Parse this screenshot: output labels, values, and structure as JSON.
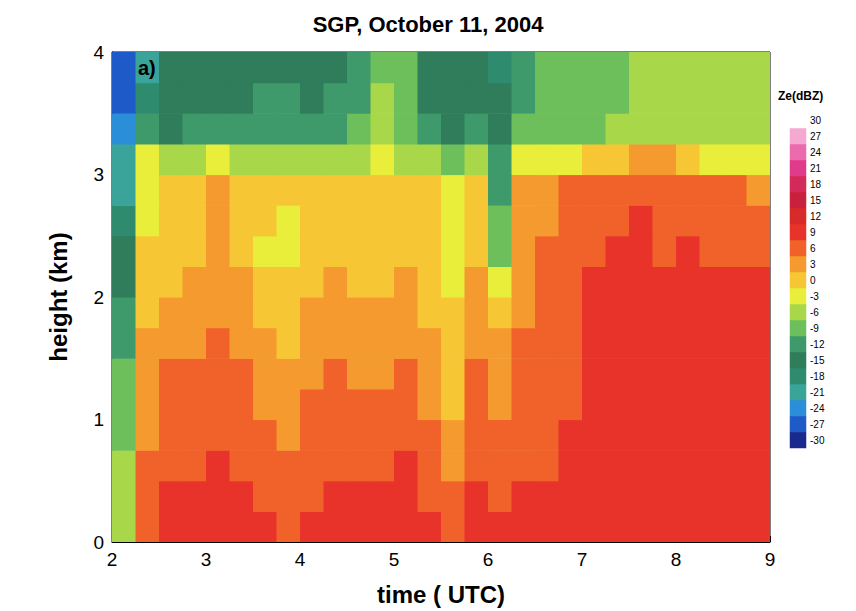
{
  "chart_data": {
    "type": "heatmap",
    "title": "SGP, October 11, 2004",
    "x_label": "time ( UTC)",
    "y_label": "height (km)",
    "annotation": "a)",
    "xlim": [
      2,
      9
    ],
    "xticks": [
      2,
      3,
      4,
      5,
      6,
      7,
      8,
      9
    ],
    "ylim": [
      0,
      4
    ],
    "yticks": [
      0,
      1,
      2,
      3,
      4
    ],
    "x_bins": [
      2,
      2.25,
      2.5,
      2.75,
      3,
      3.25,
      3.5,
      3.75,
      4,
      4.25,
      4.5,
      4.75,
      5,
      5.25,
      5.5,
      5.75,
      6,
      6.25,
      6.5,
      6.75,
      7,
      7.25,
      7.5,
      7.75,
      8,
      8.25,
      8.5,
      8.75,
      9
    ],
    "y_bins": [
      0,
      0.25,
      0.5,
      0.75,
      1,
      1.25,
      1.5,
      1.75,
      2,
      2.25,
      2.5,
      2.75,
      3,
      3.25,
      3.5,
      3.75,
      4
    ],
    "z": [
      [
        -5,
        7,
        8,
        8,
        9,
        8,
        8,
        7,
        8,
        8,
        8,
        8,
        8,
        8,
        6,
        8,
        8,
        8,
        8,
        9,
        10,
        10,
        10,
        10,
        10,
        10,
        10,
        10
      ],
      [
        -6,
        6,
        8,
        8,
        8,
        8,
        7,
        6,
        7,
        8,
        8,
        8,
        8,
        7,
        5,
        8,
        7,
        8,
        8,
        9,
        10,
        10,
        10,
        10,
        10,
        10,
        9,
        9
      ],
      [
        -7,
        5,
        7,
        7,
        8,
        7,
        6,
        5,
        7,
        7,
        7,
        7,
        8,
        6,
        3,
        7,
        6,
        7,
        7,
        8,
        9,
        10,
        10,
        10,
        9,
        10,
        9,
        9
      ],
      [
        -8,
        4,
        6,
        7,
        7,
        7,
        5,
        4,
        6,
        7,
        6,
        6,
        7,
        5,
        2,
        7,
        5,
        7,
        7,
        8,
        9,
        10,
        10,
        10,
        9,
        9,
        9,
        9
      ],
      [
        -9,
        4,
        6,
        6,
        7,
        6,
        4,
        3,
        5,
        6,
        5,
        5,
        6,
        4,
        1,
        6,
        4,
        6,
        6,
        7,
        9,
        9,
        10,
        9,
        9,
        9,
        9,
        9
      ],
      [
        -10,
        3,
        5,
        5,
        6,
        5,
        3,
        2,
        4,
        5,
        4,
        4,
        5,
        3,
        1,
        5,
        3,
        6,
        6,
        7,
        9,
        9,
        9,
        9,
        9,
        9,
        8,
        9
      ],
      [
        -11,
        2,
        4,
        4,
        5,
        4,
        2,
        1,
        3,
        4,
        3,
        3,
        4,
        2,
        0,
        4,
        2,
        5,
        5,
        7,
        8,
        9,
        9,
        9,
        8,
        9,
        8,
        8
      ],
      [
        -12,
        1,
        2,
        3,
        4,
        3,
        1,
        0,
        2,
        3,
        2,
        2,
        3,
        1,
        -1,
        3,
        0,
        4,
        5,
        6,
        8,
        8,
        9,
        8,
        8,
        8,
        8,
        8
      ],
      [
        -14,
        0,
        1,
        2,
        3,
        2,
        0,
        -1,
        1,
        2,
        1,
        1,
        2,
        0,
        -2,
        2,
        -4,
        4,
        5,
        6,
        8,
        8,
        8,
        8,
        8,
        8,
        8,
        8
      ],
      [
        -16,
        -1,
        0,
        1,
        2,
        1,
        -2,
        -2,
        0,
        1,
        0,
        0,
        1,
        -1,
        -3,
        1,
        -8,
        3,
        5,
        6,
        7,
        8,
        8,
        7,
        8,
        7,
        7,
        7
      ],
      [
        -18,
        -2,
        -1,
        0,
        2,
        1,
        -1,
        -2,
        1,
        0,
        -1,
        0,
        1,
        -1,
        -3,
        0,
        -10,
        3,
        4,
        6,
        7,
        7,
        8,
        7,
        7,
        7,
        7,
        6
      ],
      [
        -20,
        -2,
        -1,
        1,
        2,
        1,
        0,
        -1,
        1,
        0,
        -1,
        0,
        1,
        0,
        -2,
        0,
        -12,
        2,
        4,
        5,
        6,
        7,
        7,
        7,
        6,
        6,
        5,
        4
      ],
      [
        -22,
        -3,
        -6,
        -5,
        -4,
        -5,
        -5,
        -5,
        -5,
        -6,
        -6,
        -4,
        -5,
        -6,
        -8,
        -6,
        -12,
        -4,
        -3,
        -2,
        0,
        1,
        2,
        3,
        0,
        -2,
        -3,
        -4
      ],
      [
        -24,
        -12,
        -14,
        -13,
        -13,
        -13,
        -12,
        -12,
        -12,
        -12,
        -10,
        -7,
        -8,
        -13,
        -14,
        -13,
        -15,
        -10,
        -9,
        -8,
        -8,
        -7,
        -7,
        -6,
        -6,
        -6,
        -5,
        -5
      ],
      [
        -26,
        -18,
        -15,
        -15,
        -14,
        -14,
        -13,
        -13,
        -14,
        -13,
        -11,
        -7,
        -9,
        -14,
        -15,
        -14,
        -16,
        -11,
        -9,
        -9,
        -8,
        -8,
        -7,
        -6,
        -6,
        -6,
        -5,
        -5
      ],
      [
        -27,
        -21,
        -16,
        -16,
        -15,
        -15,
        -14,
        -14,
        -15,
        -14,
        -12,
        -8,
        -10,
        -15,
        -16,
        -15,
        -17,
        -12,
        -10,
        -9,
        -8,
        -8,
        -7,
        -6,
        -5,
        -6,
        -5,
        -5
      ]
    ],
    "colorbar": {
      "title": "Ze(dBZ)",
      "ticks": [
        -30,
        -27,
        -24,
        -21,
        -18,
        -15,
        -12,
        -9,
        -6,
        -3,
        0,
        3,
        6,
        9,
        12,
        15,
        18,
        21,
        24,
        27,
        30
      ],
      "colors": [
        "#1a2a8c",
        "#1e5bc8",
        "#2a8fd8",
        "#3aa39a",
        "#2e8b6e",
        "#2f7d5a",
        "#3e9a6a",
        "#6cbf5a",
        "#a8d84a",
        "#e8ee3a",
        "#f7c634",
        "#f59a2e",
        "#f0622a",
        "#e8332a",
        "#d92a2a",
        "#c9203e",
        "#d42a5a",
        "#e03a8a",
        "#ec6aae",
        "#f5a8d0",
        "#ffffff"
      ]
    }
  }
}
